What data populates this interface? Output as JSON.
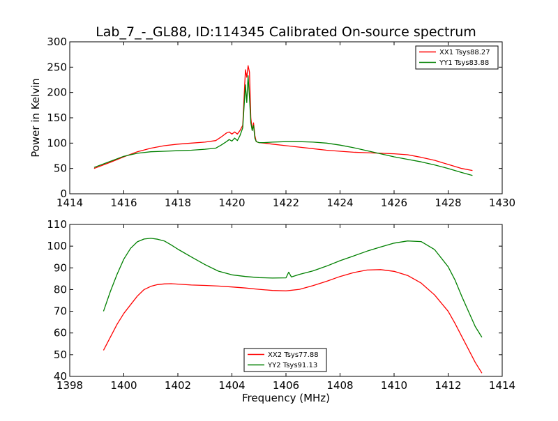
{
  "chart_data": [
    {
      "type": "line",
      "title": "Lab_7_-_GL88, ID:114345 Calibrated On-source spectrum",
      "xlabel": "",
      "ylabel": "Power in Kelvin",
      "xlim": [
        1414,
        1430
      ],
      "ylim": [
        0,
        300
      ],
      "xticks": [
        1414,
        1416,
        1418,
        1420,
        1422,
        1424,
        1426,
        1428,
        1430
      ],
      "yticks": [
        0,
        50,
        100,
        150,
        200,
        250,
        300
      ],
      "grid": false,
      "legend_position": "upper-right",
      "series": [
        {
          "name": "XX1 Tsys88.27",
          "color": "#ff0000",
          "x": [
            1414.9,
            1415.5,
            1416.0,
            1416.5,
            1417.0,
            1417.5,
            1418.0,
            1418.5,
            1419.0,
            1419.4,
            1419.6,
            1419.8,
            1419.9,
            1420.0,
            1420.1,
            1420.2,
            1420.3,
            1420.4,
            1420.5,
            1420.55,
            1420.6,
            1420.65,
            1420.7,
            1420.75,
            1420.8,
            1420.85,
            1420.9,
            1421.0,
            1421.2,
            1421.5,
            1422.0,
            1422.5,
            1423.0,
            1423.5,
            1424.0,
            1424.5,
            1425.0,
            1425.5,
            1426.0,
            1426.5,
            1427.0,
            1427.5,
            1428.0,
            1428.5,
            1428.9
          ],
          "values": [
            50,
            62,
            73,
            83,
            90,
            95,
            98,
            100,
            102,
            105,
            112,
            120,
            122,
            118,
            122,
            118,
            125,
            135,
            245,
            230,
            253,
            240,
            150,
            125,
            140,
            115,
            103,
            101,
            100,
            98,
            95,
            92,
            89,
            86,
            84,
            82,
            81,
            80,
            79,
            77,
            72,
            66,
            58,
            50,
            46
          ]
        },
        {
          "name": "YY1 Tsys83.88",
          "color": "#008000",
          "x": [
            1414.9,
            1415.5,
            1416.0,
            1416.5,
            1417.0,
            1417.5,
            1418.0,
            1418.5,
            1419.0,
            1419.4,
            1419.6,
            1419.8,
            1419.9,
            1420.0,
            1420.1,
            1420.2,
            1420.3,
            1420.4,
            1420.5,
            1420.55,
            1420.6,
            1420.65,
            1420.7,
            1420.75,
            1420.8,
            1420.85,
            1420.9,
            1421.0,
            1421.2,
            1421.5,
            1422.0,
            1422.5,
            1423.0,
            1423.5,
            1424.0,
            1424.5,
            1425.0,
            1425.5,
            1426.0,
            1426.5,
            1427.0,
            1427.5,
            1428.0,
            1428.5,
            1428.9
          ],
          "values": [
            52,
            64,
            74,
            80,
            83,
            84,
            85,
            86,
            88,
            90,
            96,
            103,
            107,
            104,
            110,
            105,
            115,
            130,
            215,
            180,
            233,
            190,
            140,
            125,
            135,
            110,
            103,
            101,
            101,
            102,
            103,
            103,
            102,
            100,
            96,
            91,
            85,
            79,
            73,
            68,
            63,
            57,
            50,
            42,
            36
          ]
        }
      ]
    },
    {
      "type": "line",
      "title": "",
      "xlabel": "Frequency (MHz)",
      "ylabel": "",
      "xlim": [
        1398,
        1414
      ],
      "ylim": [
        40,
        110
      ],
      "xticks": [
        1398,
        1400,
        1402,
        1404,
        1406,
        1408,
        1410,
        1412,
        1414
      ],
      "yticks": [
        40,
        50,
        60,
        70,
        80,
        90,
        100,
        110
      ],
      "grid": false,
      "legend_position": "lower-center",
      "series": [
        {
          "name": "XX2 Tsys77.88",
          "color": "#ff0000",
          "x": [
            1399.25,
            1399.5,
            1399.75,
            1400.0,
            1400.25,
            1400.5,
            1400.75,
            1401.0,
            1401.25,
            1401.5,
            1401.75,
            1402.0,
            1402.5,
            1403.0,
            1403.5,
            1404.0,
            1404.5,
            1405.0,
            1405.5,
            1406.0,
            1406.5,
            1407.0,
            1407.5,
            1408.0,
            1408.5,
            1409.0,
            1409.5,
            1410.0,
            1410.5,
            1411.0,
            1411.5,
            1412.0,
            1412.25,
            1412.5,
            1412.75,
            1413.0,
            1413.25
          ],
          "values": [
            52,
            58,
            64,
            69,
            73,
            77,
            80,
            81.5,
            82.3,
            82.6,
            82.7,
            82.5,
            82.1,
            81.9,
            81.6,
            81.2,
            80.7,
            80.1,
            79.6,
            79.4,
            80.1,
            81.8,
            83.8,
            86.0,
            87.8,
            89.0,
            89.2,
            88.4,
            86.5,
            83.0,
            77.5,
            70.0,
            64.5,
            58.5,
            52.5,
            46.5,
            41.5
          ]
        },
        {
          "name": "YY2 Tsys91.13",
          "color": "#008000",
          "x": [
            1399.25,
            1399.5,
            1399.75,
            1400.0,
            1400.25,
            1400.5,
            1400.75,
            1401.0,
            1401.25,
            1401.5,
            1401.75,
            1402.0,
            1402.5,
            1403.0,
            1403.5,
            1404.0,
            1404.5,
            1405.0,
            1405.5,
            1406.0,
            1406.1,
            1406.2,
            1406.3,
            1406.5,
            1407.0,
            1407.5,
            1408.0,
            1408.5,
            1409.0,
            1409.5,
            1410.0,
            1410.5,
            1411.0,
            1411.5,
            1412.0,
            1412.25,
            1412.5,
            1412.75,
            1413.0,
            1413.25
          ],
          "values": [
            70,
            79,
            87,
            94,
            99,
            102,
            103.3,
            103.6,
            103.2,
            102.4,
            100.6,
            98.6,
            95,
            91.5,
            88.5,
            86.8,
            86.0,
            85.5,
            85.3,
            85.4,
            88,
            85.8,
            86.2,
            87.0,
            88.6,
            90.8,
            93.3,
            95.5,
            97.7,
            99.6,
            101.4,
            102.4,
            102.1,
            98.4,
            90.5,
            84.5,
            77.0,
            70.0,
            63.0,
            58.0
          ]
        }
      ]
    }
  ]
}
